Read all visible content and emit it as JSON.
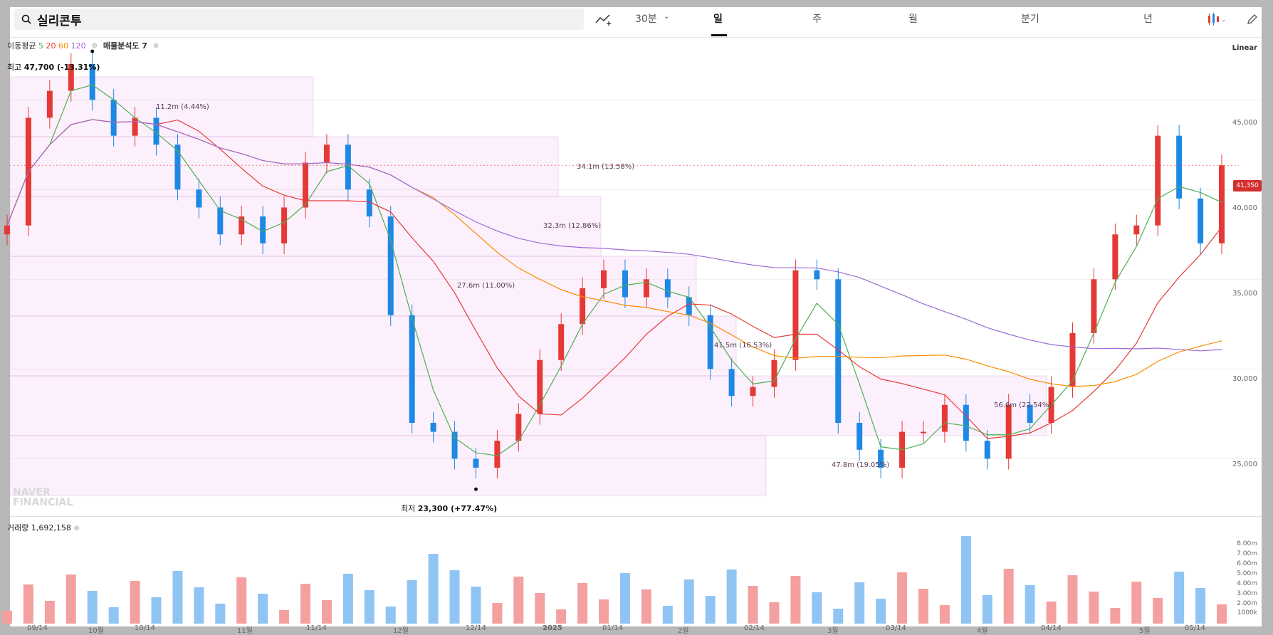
{
  "search": {
    "query": "실리콘투"
  },
  "toolbar": {
    "interval": "30분",
    "periods": [
      "일",
      "주",
      "월",
      "분기",
      "년"
    ],
    "active_period": "일"
  },
  "indicators": {
    "ma_label": "이동평균",
    "ma5": "5",
    "ma20": "20",
    "ma60": "60",
    "ma120": "120",
    "volume_profile": "매물분석도 7"
  },
  "scale": "Linear",
  "current_price": "41,350",
  "price_axis": [
    "45,000",
    "40,000",
    "35,000",
    "30,000",
    "25,000"
  ],
  "high": {
    "prefix": "최고",
    "value": "47,700 (-13.31%)"
  },
  "low": {
    "prefix": "최저",
    "value": "23,300 (+77.47%)"
  },
  "volume_profile_labels": [
    "11.2m (4.44%)",
    "34.1m (13.58%)",
    "32.3m (12.86%)",
    "27.6m (11.00%)",
    "41.5m (16.53%)",
    "47.8m (19.05%)",
    "56.6m (22.54%)"
  ],
  "volume": {
    "label": "거래량",
    "value": "1,692,158"
  },
  "volume_axis": [
    "8.00m",
    "7.00m",
    "6.00m",
    "5.00m",
    "4.00m",
    "3.00m",
    "2.00m",
    "1000k"
  ],
  "x_axis": [
    "09/14",
    "10월",
    "10/14",
    "11월",
    "11/14",
    "12월",
    "12/14",
    "2025",
    "01/14",
    "2월",
    "02/14",
    "3월",
    "03/14",
    "4월",
    "04/14",
    "5월",
    "05/14"
  ],
  "watermark": [
    "NAVER",
    "FINANCIAL"
  ],
  "colors": {
    "up": "#e53935",
    "down": "#1e88e5",
    "ma5": "#4caf50",
    "ma20": "#e53935",
    "ma60": "#fb8c00",
    "ma120": "#9c6ad8"
  },
  "chart_data": {
    "type": "candlestick",
    "scale": "linear",
    "ylim": [
      22000,
      48500
    ],
    "high": 47700,
    "low": 23300,
    "last": 41350,
    "closes_approx": [
      38000,
      44000,
      45500,
      47000,
      45000,
      43000,
      44000,
      42500,
      40000,
      39000,
      37500,
      38500,
      37000,
      39000,
      41500,
      42500,
      40000,
      38500,
      33000,
      27000,
      26500,
      25000,
      24500,
      26000,
      27500,
      30500,
      32500,
      34500,
      35500,
      34000,
      35000,
      34000,
      33000,
      30000,
      28500,
      29000,
      30500,
      35500,
      35000,
      27000,
      25500,
      24500,
      26500,
      26500,
      28000,
      26000,
      25000,
      28000,
      27000,
      29000,
      32000,
      35000,
      37500,
      38000,
      43000,
      39500,
      37000,
      41350
    ]
  }
}
